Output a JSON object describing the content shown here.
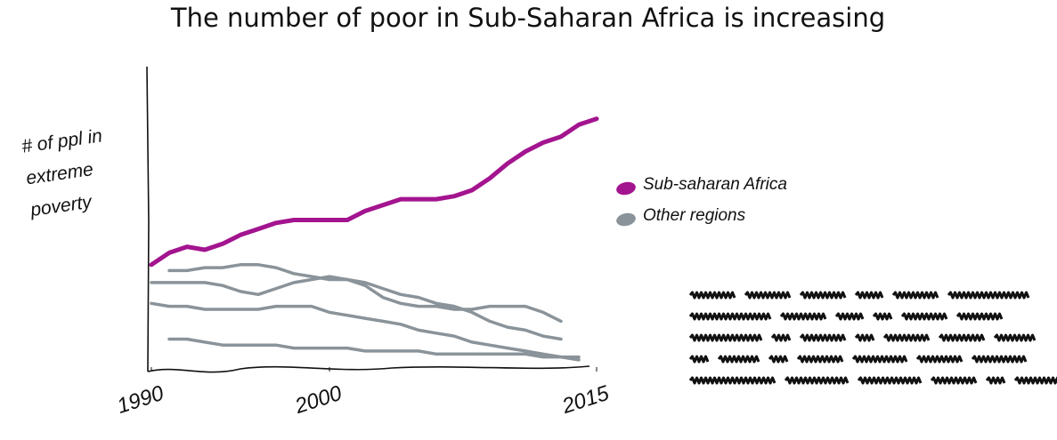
{
  "chart_data": {
    "type": "line",
    "title": "The number of poor in Sub-Saharan Africa is increasing",
    "y_label": "# of ppl in extreme poverty",
    "x": [
      1990,
      1991,
      1992,
      1993,
      1994,
      1995,
      1996,
      1997,
      1998,
      1999,
      2000,
      2001,
      2002,
      2003,
      2004,
      2005,
      2006,
      2007,
      2008,
      2009,
      2010,
      2011,
      2012,
      2013,
      2014,
      2015
    ],
    "xlim": [
      1990,
      2015
    ],
    "xticks": [
      1990,
      2000,
      2015
    ],
    "ylim": [
      0,
      100
    ],
    "series": [
      {
        "name": "Sub-saharan Africa",
        "color": "#a3148f",
        "values": [
          35,
          39,
          41,
          40,
          42,
          45,
          47,
          49,
          50,
          50,
          50,
          50,
          53,
          55,
          57,
          57,
          57,
          58,
          60,
          64,
          69,
          73,
          76,
          78,
          82,
          84
        ]
      },
      {
        "name": "Other regions",
        "color": "#8a9399",
        "values": [
          [
            null,
            33,
            33,
            34,
            34,
            35,
            35,
            34,
            32,
            31,
            30,
            30,
            29,
            27,
            25,
            24,
            22,
            21,
            19,
            16,
            14,
            13,
            11,
            10,
            null,
            null
          ],
          [
            29,
            29,
            29,
            29,
            28,
            26,
            25,
            27,
            29,
            30,
            31,
            30,
            28,
            24,
            22,
            21,
            21,
            20,
            20,
            21,
            21,
            21,
            19,
            16,
            null,
            null
          ],
          [
            22,
            21,
            21,
            20,
            20,
            20,
            20,
            21,
            21,
            21,
            19,
            18,
            17,
            16,
            15,
            13,
            12,
            11,
            9,
            8,
            7,
            6,
            5,
            4,
            3,
            null
          ],
          [
            null,
            10,
            10,
            9,
            8,
            8,
            8,
            8,
            7,
            7,
            7,
            7,
            6,
            6,
            6,
            6,
            5,
            5,
            5,
            5,
            5,
            5,
            4,
            4,
            4,
            null
          ]
        ]
      }
    ]
  }
}
